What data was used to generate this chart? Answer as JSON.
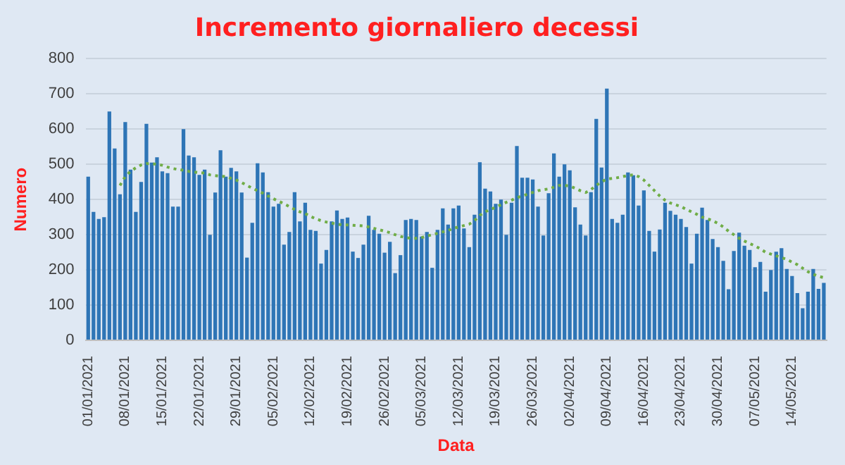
{
  "chart_data": {
    "type": "bar",
    "title": "Incremento giornaliero decessi",
    "xlabel": "Data",
    "ylabel": "Numero",
    "categories": [
      "01/01/2021",
      null,
      null,
      null,
      null,
      null,
      null,
      "08/01/2021",
      null,
      null,
      null,
      null,
      null,
      null,
      "15/01/2021",
      null,
      null,
      null,
      null,
      null,
      null,
      "22/01/2021",
      null,
      null,
      null,
      null,
      null,
      null,
      "29/01/2021",
      null,
      null,
      null,
      null,
      null,
      null,
      "05/02/2021",
      null,
      null,
      null,
      null,
      null,
      null,
      "12/02/2021",
      null,
      null,
      null,
      null,
      null,
      null,
      "19/02/2021",
      null,
      null,
      null,
      null,
      null,
      null,
      "26/02/2021",
      null,
      null,
      null,
      null,
      null,
      null,
      "05/03/2021",
      null,
      null,
      null,
      null,
      null,
      null,
      "12/03/2021",
      null,
      null,
      null,
      null,
      null,
      null,
      "19/03/2021",
      null,
      null,
      null,
      null,
      null,
      null,
      "26/03/2021",
      null,
      null,
      null,
      null,
      null,
      null,
      "02/04/2021",
      null,
      null,
      null,
      null,
      null,
      null,
      "09/04/2021",
      null,
      null,
      null,
      null,
      null,
      null,
      "16/04/2021",
      null,
      null,
      null,
      null,
      null,
      null,
      "23/04/2021",
      null,
      null,
      null,
      null,
      null,
      null,
      "30/04/2021",
      null,
      null,
      null,
      null,
      null,
      null,
      "07/05/2021",
      null,
      null,
      null,
      null,
      null,
      null,
      "14/05/2021",
      null,
      null,
      null,
      null,
      null,
      null
    ],
    "series": [
      {
        "color": "#2e75b6",
        "values": [
          465,
          365,
          345,
          350,
          650,
          545,
          415,
          620,
          485,
          365,
          450,
          615,
          505,
          520,
          480,
          475,
          380,
          380,
          600,
          525,
          520,
          470,
          485,
          300,
          420,
          540,
          465,
          490,
          480,
          420,
          235,
          334,
          503,
          477,
          421,
          380,
          388,
          272,
          308,
          421,
          338,
          391,
          314,
          311,
          218,
          257,
          338,
          369,
          345,
          349,
          252,
          234,
          272,
          354,
          314,
          303,
          249,
          280,
          191,
          242,
          342,
          345,
          342,
          295,
          308,
          206,
          314,
          375,
          329,
          375,
          383,
          318,
          265,
          357,
          506,
          431,
          423,
          388,
          400,
          300,
          391,
          552,
          462,
          462,
          457,
          380,
          298,
          418,
          531,
          465,
          500,
          483,
          378,
          329,
          298,
          421,
          629,
          491,
          715,
          345,
          334,
          357,
          477,
          469,
          383,
          426,
          311,
          252,
          315,
          391,
          368,
          357,
          345,
          322,
          218,
          303,
          377,
          342,
          288,
          265,
          226,
          145,
          254,
          306,
          269,
          257,
          208,
          223,
          138,
          200,
          252,
          262,
          203,
          183,
          134,
          91,
          138,
          203,
          146,
          163
        ]
      },
      {
        "type": "line",
        "color": "#70ad47",
        "line_style": "dotted",
        "marker": "none",
        "values": [
          null,
          null,
          null,
          null,
          null,
          null,
          440,
          465,
          480,
          490,
          498,
          502,
          502,
          500,
          497,
          492,
          488,
          485,
          483,
          480,
          478,
          476,
          475,
          470,
          468,
          466,
          465,
          460,
          455,
          448,
          440,
          432,
          425,
          418,
          410,
          402,
          395,
          388,
          380,
          372,
          365,
          360,
          352,
          345,
          340,
          336,
          333,
          330,
          328,
          328,
          327,
          326,
          325,
          322,
          318,
          314,
          310,
          306,
          300,
          295,
          292,
          290,
          290,
          292,
          296,
          300,
          304,
          308,
          312,
          318,
          322,
          326,
          330,
          340,
          355,
          365,
          372,
          378,
          385,
          392,
          398,
          405,
          410,
          415,
          420,
          425,
          428,
          430,
          435,
          440,
          440,
          438,
          432,
          425,
          420,
          428,
          440,
          450,
          458,
          460,
          462,
          465,
          468,
          470,
          465,
          455,
          440,
          425,
          410,
          398,
          390,
          385,
          380,
          372,
          365,
          358,
          350,
          345,
          340,
          332,
          322,
          310,
          300,
          290,
          282,
          275,
          268,
          260,
          250,
          245,
          240,
          235,
          230,
          222,
          215,
          205,
          195,
          188,
          182,
          178
        ]
      }
    ],
    "ylim": [
      0,
      800
    ],
    "yticks": [
      0,
      100,
      200,
      300,
      400,
      500,
      600,
      700,
      800
    ],
    "grid": "y",
    "legend": false
  }
}
